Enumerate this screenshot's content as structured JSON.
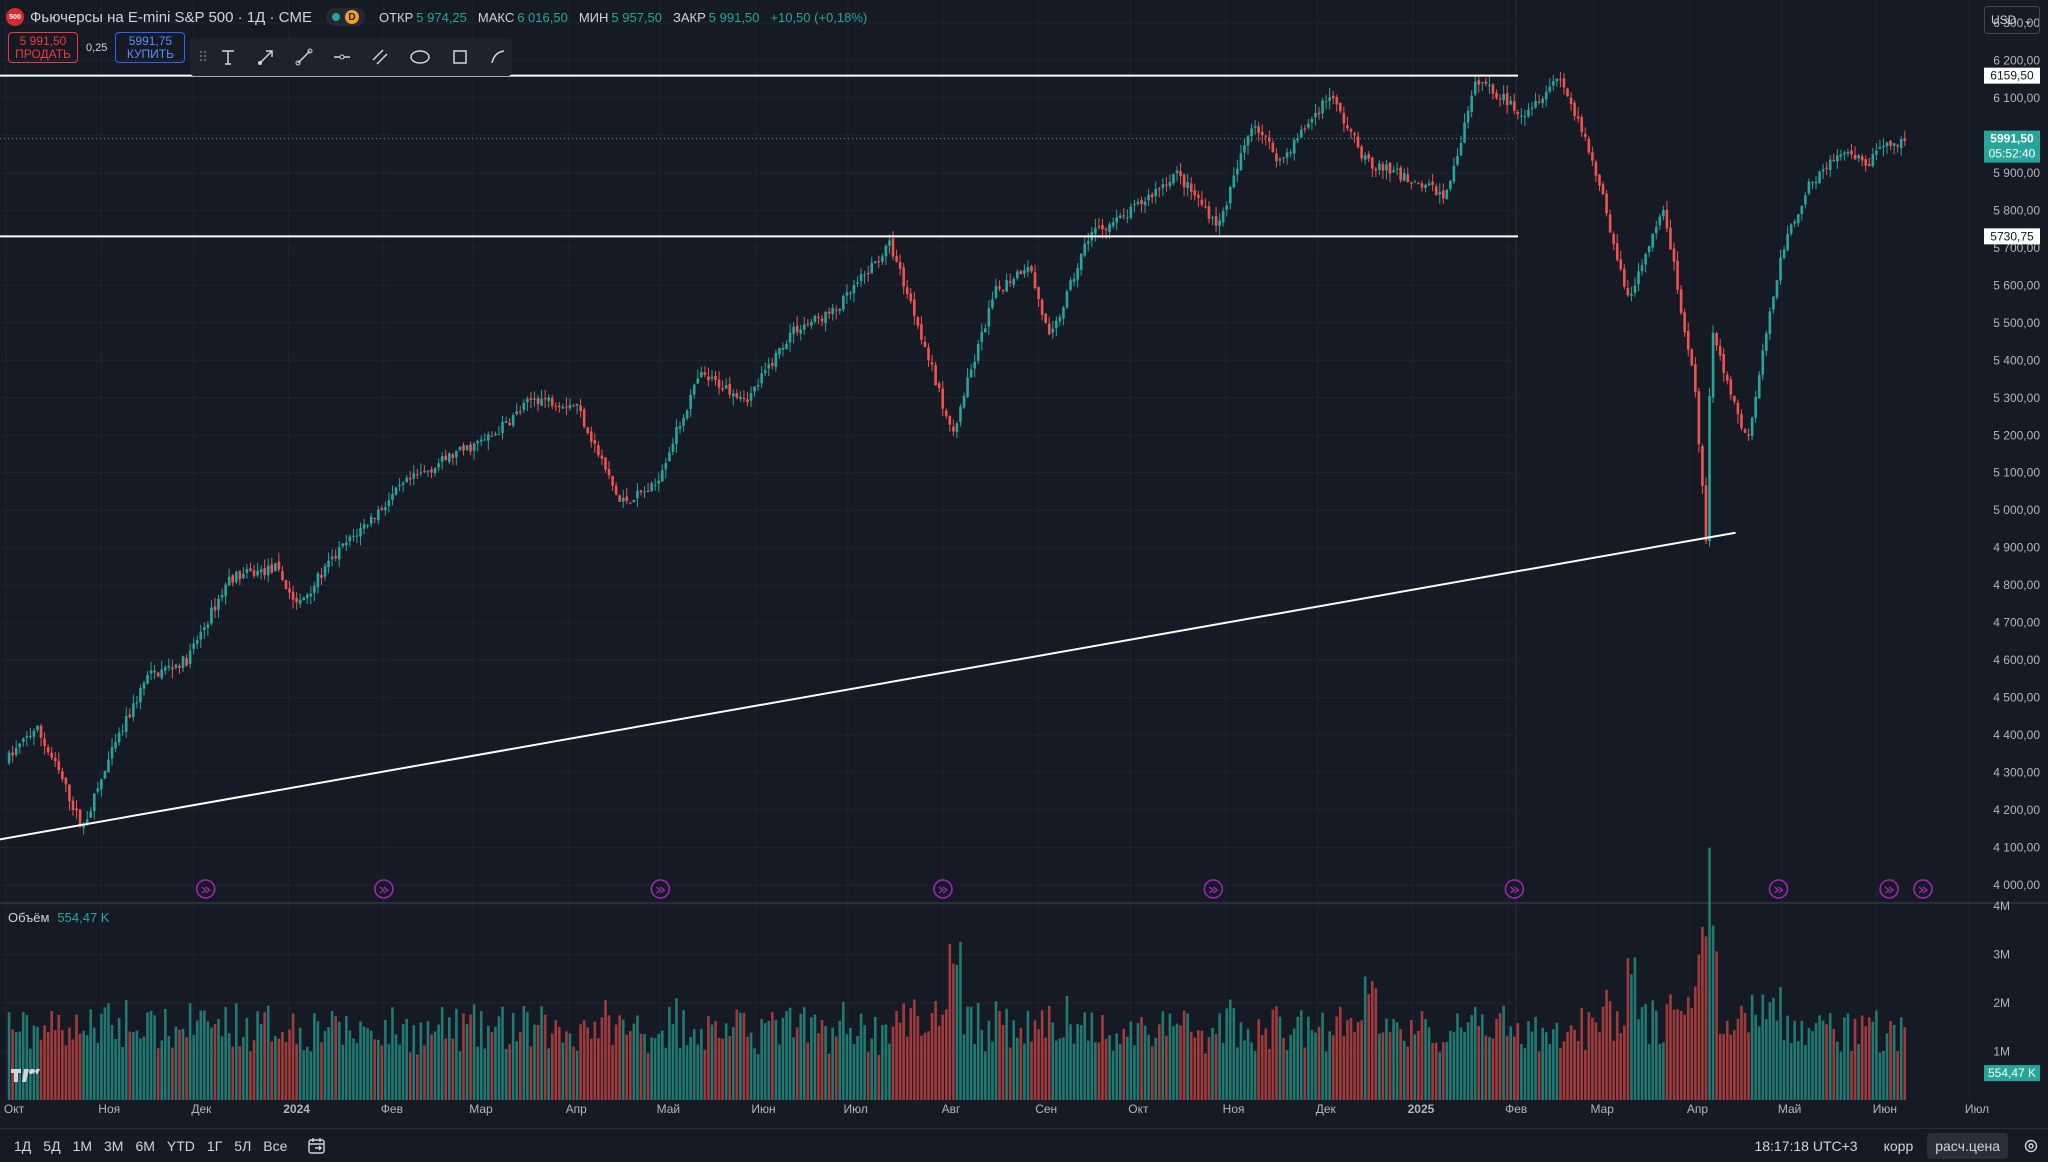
{
  "header": {
    "symbol_logo": "500",
    "title": "Фьючерсы на E-mini S&P 500 · 1Д · CME",
    "status_letter": "D",
    "ohlc": [
      {
        "label": "ОТКР",
        "value": "5 974,25"
      },
      {
        "label": "МАКС",
        "value": "6 016,50"
      },
      {
        "label": "МИН",
        "value": "5 957,50"
      },
      {
        "label": "ЗАКР",
        "value": "5 991,50"
      },
      {
        "label": "",
        "value": "+10,50 (+0,18%)"
      }
    ]
  },
  "trade": {
    "sell_price": "5 991,50",
    "sell_label": "ПРОДАТЬ",
    "spread": "0,25",
    "buy_price": "5991,75",
    "buy_label": "КУПИТЬ"
  },
  "toolbar": {
    "tools": [
      "text-tool-icon",
      "arrow-tool-icon",
      "trend-line-icon",
      "horizontal-ray-icon",
      "parallel-channel-icon",
      "ellipse-icon",
      "rectangle-icon",
      "path-icon"
    ]
  },
  "currency": {
    "value": "USD"
  },
  "volume": {
    "label": "Объём",
    "value": "554,47 K"
  },
  "bottom": {
    "ranges": [
      "1Д",
      "5Д",
      "1М",
      "3М",
      "6М",
      "YTD",
      "1Г",
      "5Л",
      "Все"
    ],
    "clock": "18:17:18 UTC+3",
    "corr": "корр",
    "settlement": "расч.цена"
  },
  "colors": {
    "up": "#26a69a",
    "down": "#ef5350",
    "background": "#161a25",
    "line": "#ffffff",
    "event_icon": "#9c27b0"
  },
  "chart_data": {
    "type": "candlestick",
    "timeframe": "1Д",
    "y_ticks": [
      "6 300,00",
      "6 200,00",
      "6 100,00",
      "6 000,00",
      "5 900,00",
      "5 800,00",
      "5 700,00",
      "5 600,00",
      "5 500,00",
      "5 400,00",
      "5 300,00",
      "5 200,00",
      "5 100,00",
      "5 000,00",
      "4 900,00",
      "4 800,00",
      "4 700,00",
      "4 600,00",
      "4 500,00",
      "4 400,00",
      "4 300,00",
      "4 200,00",
      "4 100,00",
      "4 000,00"
    ],
    "ylim": [
      3960,
      6340
    ],
    "x_ticks": [
      "Окт",
      "Ноя",
      "Дек",
      "2024",
      "Фев",
      "Мар",
      "Апр",
      "Май",
      "Июн",
      "Июл",
      "Авг",
      "Сен",
      "Окт",
      "Ноя",
      "Дек",
      "2025",
      "Фев",
      "Мар",
      "Апр",
      "Май",
      "Июн",
      "Июл"
    ],
    "price_path": [
      [
        "2023-10-02",
        4330
      ],
      [
        "2023-10-12",
        4420
      ],
      [
        "2023-10-20",
        4290
      ],
      [
        "2023-10-27",
        4150
      ],
      [
        "2023-11-06",
        4360
      ],
      [
        "2023-11-17",
        4555
      ],
      [
        "2023-11-30",
        4600
      ],
      [
        "2023-12-14",
        4820
      ],
      [
        "2023-12-29",
        4845
      ],
      [
        "2024-01-05",
        4745
      ],
      [
        "2024-01-19",
        4895
      ],
      [
        "2024-02-09",
        5070
      ],
      [
        "2024-02-23",
        5140
      ],
      [
        "2024-03-08",
        5195
      ],
      [
        "2024-03-22",
        5300
      ],
      [
        "2024-04-05",
        5280
      ],
      [
        "2024-04-19",
        5020
      ],
      [
        "2024-04-30",
        5060
      ],
      [
        "2024-05-15",
        5360
      ],
      [
        "2024-05-31",
        5300
      ],
      [
        "2024-06-14",
        5480
      ],
      [
        "2024-06-28",
        5530
      ],
      [
        "2024-07-16",
        5710
      ],
      [
        "2024-07-25",
        5500
      ],
      [
        "2024-08-05",
        5200
      ],
      [
        "2024-08-19",
        5580
      ],
      [
        "2024-08-30",
        5660
      ],
      [
        "2024-09-06",
        5450
      ],
      [
        "2024-09-19",
        5740
      ],
      [
        "2024-09-30",
        5780
      ],
      [
        "2024-10-17",
        5900
      ],
      [
        "2024-10-31",
        5760
      ],
      [
        "2024-11-11",
        6040
      ],
      [
        "2024-11-20",
        5930
      ],
      [
        "2024-12-06",
        6110
      ],
      [
        "2024-12-18",
        5930
      ],
      [
        "2025-01-02",
        5880
      ],
      [
        "2025-01-13",
        5840
      ],
      [
        "2025-01-23",
        6150
      ],
      [
        "2025-02-07",
        6060
      ],
      [
        "2025-02-19",
        6160
      ],
      [
        "2025-03-03",
        5900
      ],
      [
        "2025-03-13",
        5560
      ],
      [
        "2025-03-25",
        5800
      ],
      [
        "2025-04-04",
        5320
      ],
      [
        "2025-04-08",
        4870
      ],
      [
        "2025-04-09",
        5480
      ],
      [
        "2025-04-21",
        5180
      ],
      [
        "2025-05-02",
        5690
      ],
      [
        "2025-05-12",
        5880
      ],
      [
        "2025-05-21",
        5950
      ],
      [
        "2025-05-30",
        5925
      ],
      [
        "2025-06-06",
        5975
      ],
      [
        "2025-06-11",
        5991.5
      ]
    ],
    "horizontal_lines": [
      {
        "price": 6159.5,
        "label": "6159,50"
      },
      {
        "price": 5730.75,
        "label": "5730,75"
      }
    ],
    "current_price": {
      "price": 5991.5,
      "label": "5991,50",
      "countdown": "05:52:40"
    },
    "trend_line": {
      "from": [
        "2023-09-14",
        4100
      ],
      "to": [
        "2025-04-16",
        4940
      ]
    },
    "events": [
      "2023-12-05",
      "2024-02-01",
      "2024-05-01",
      "2024-08-01",
      "2024-10-28",
      "2025-02-03",
      "2025-04-30",
      "2025-06-05",
      "2025-06-16"
    ],
    "volume": {
      "y_ticks": [
        "4M",
        "3M",
        "2M",
        "1M"
      ],
      "ylim": [
        0,
        4000000
      ],
      "last": "554,47 K",
      "peaks": [
        [
          "2024-08-05",
          3400000
        ],
        [
          "2024-12-18",
          2600000
        ],
        [
          "2025-03-13",
          3100000
        ],
        [
          "2025-04-07",
          3700000
        ],
        [
          "2025-04-09",
          3700000
        ]
      ]
    }
  }
}
